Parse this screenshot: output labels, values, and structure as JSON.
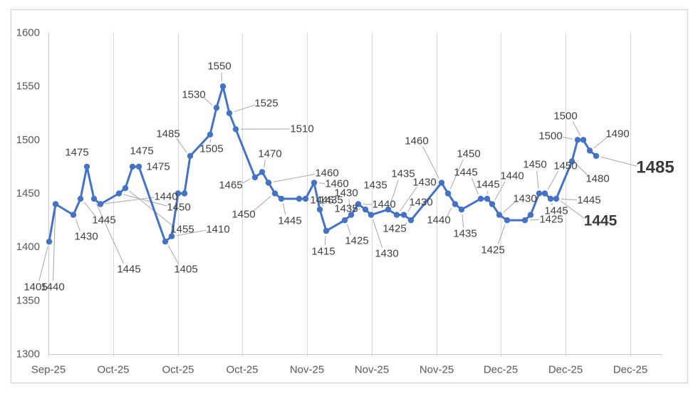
{
  "chart_data": {
    "type": "line",
    "title": "",
    "xlabel": "",
    "ylabel": "",
    "ylim": [
      1300,
      1600
    ],
    "y_ticks": [
      1300,
      1350,
      1400,
      1450,
      1500,
      1550,
      1600
    ],
    "x_tick_labels": [
      "Sep-25",
      "Oct-25",
      "Oct-25",
      "Oct-25",
      "Nov-25",
      "Nov-25",
      "Nov-25",
      "Dec-25",
      "Dec-25",
      "Dec-25"
    ],
    "grid": "vertical-only",
    "legend": "none",
    "colors": {
      "line": "#4472C4",
      "marker": "#4472C4",
      "data_label": "#404040",
      "axis_text": "#595959",
      "gridline": "#D9D9D9",
      "axis_line": "#C6C6C6",
      "leader_line": "#A6A6A6",
      "frame": "#D9D9D9",
      "background": "#FFFFFF"
    },
    "values": [
      1405,
      1440,
      1430,
      1445,
      1475,
      1445,
      1440,
      1450,
      1455,
      1475,
      1475,
      1405,
      1410,
      1450,
      1450,
      1485,
      1505,
      1530,
      1550,
      1525,
      1510,
      1465,
      1470,
      1460,
      1450,
      1445,
      1445,
      1445,
      1460,
      1435,
      1415,
      1425,
      1430,
      1440,
      1435,
      1430,
      1435,
      1430,
      1430,
      1425,
      1460,
      1450,
      1440,
      1435,
      1445,
      1445,
      1440,
      1430,
      1425,
      1425,
      1430,
      1450,
      1450,
      1445,
      1445,
      1480,
      1500,
      1500,
      1490,
      1485
    ],
    "points": [
      [
        69,
        1405
      ],
      [
        78,
        1440
      ],
      [
        103,
        1430
      ],
      [
        113,
        1445
      ],
      [
        122,
        1475
      ],
      [
        132,
        1445
      ],
      [
        141,
        1440
      ],
      [
        167,
        1450
      ],
      [
        176,
        1455
      ],
      [
        186,
        1475
      ],
      [
        195,
        1475
      ],
      [
        232,
        1405
      ],
      [
        241,
        1410
      ],
      [
        250,
        1450
      ],
      [
        259,
        1450
      ],
      [
        267,
        1485
      ],
      [
        295,
        1505
      ],
      [
        304,
        1530
      ],
      [
        313,
        1550
      ],
      [
        322,
        1525
      ],
      [
        331,
        1510
      ],
      [
        358,
        1465
      ],
      [
        368,
        1470
      ],
      [
        377,
        1460
      ],
      [
        386,
        1450
      ],
      [
        395,
        1445
      ],
      [
        420,
        1445
      ],
      [
        429,
        1445
      ],
      [
        441,
        1460
      ],
      [
        449,
        1435
      ],
      [
        458,
        1415
      ],
      [
        484,
        1425
      ],
      [
        493,
        1430
      ],
      [
        503,
        1440
      ],
      [
        513,
        1435
      ],
      [
        521,
        1430
      ],
      [
        545,
        1435
      ],
      [
        557,
        1430
      ],
      [
        567,
        1430
      ],
      [
        577,
        1425
      ],
      [
        620,
        1460
      ],
      [
        629,
        1450
      ],
      [
        639,
        1440
      ],
      [
        648,
        1435
      ],
      [
        675,
        1445
      ],
      [
        684,
        1445
      ],
      [
        691,
        1440
      ],
      [
        701,
        1430
      ],
      [
        712,
        1425
      ],
      [
        737,
        1425
      ],
      [
        745,
        1430
      ],
      [
        757,
        1450
      ],
      [
        765,
        1450
      ],
      [
        773,
        1445
      ],
      [
        781,
        1445
      ],
      [
        803,
        1480
      ],
      [
        811,
        1500
      ],
      [
        819,
        1500
      ],
      [
        828,
        1490
      ],
      [
        837,
        1485
      ]
    ],
    "labels": [
      [
        "1405",
        50,
        403,
        0,
        1,
        0
      ],
      [
        "1440",
        74,
        403,
        1,
        1,
        0
      ],
      [
        "1430",
        121,
        332,
        2,
        1,
        0
      ],
      [
        "1445",
        146,
        309,
        3,
        1,
        0
      ],
      [
        "1475",
        108,
        214,
        4,
        0,
        0
      ],
      [
        "1445",
        181,
        378,
        5,
        1,
        0
      ],
      [
        "1440",
        233,
        276,
        6,
        1,
        0
      ],
      [
        "1450",
        251,
        291,
        7,
        1,
        0
      ],
      [
        "1455",
        256,
        322,
        8,
        1,
        0
      ],
      [
        "1475",
        199,
        212,
        9,
        0,
        0
      ],
      [
        "1475",
        222,
        234,
        10,
        0,
        0
      ],
      [
        "1405",
        261,
        378,
        11,
        1,
        0
      ],
      [
        "1410",
        306,
        322,
        12,
        1,
        0
      ],
      [
        "1485",
        236,
        188,
        15,
        1,
        0
      ],
      [
        "1505",
        297,
        209,
        16,
        1,
        0
      ],
      [
        "1530",
        272,
        133,
        17,
        1,
        0
      ],
      [
        "1550",
        308,
        93,
        18,
        1,
        0
      ],
      [
        "1525",
        374,
        145,
        19,
        1,
        0
      ],
      [
        "1510",
        424,
        181,
        20,
        1,
        0
      ],
      [
        "1465",
        324,
        260,
        21,
        1,
        0
      ],
      [
        "1470",
        379,
        216,
        22,
        1,
        0
      ],
      [
        "1460",
        459,
        243,
        23,
        1,
        0
      ],
      [
        "1450",
        342,
        301,
        24,
        1,
        0
      ],
      [
        "1445",
        407,
        310,
        25,
        1,
        0
      ],
      [
        "1445",
        452,
        281,
        27,
        1,
        0
      ],
      [
        "1460",
        473,
        258,
        28,
        1,
        0
      ],
      [
        "1435",
        465,
        281,
        29,
        1,
        0
      ],
      [
        "1415",
        454,
        353,
        30,
        1,
        0
      ],
      [
        "1425",
        501,
        338,
        31,
        1,
        0
      ],
      [
        "1430",
        486,
        271,
        32,
        1,
        0
      ],
      [
        "1440",
        539,
        287,
        33,
        1,
        0
      ],
      [
        "1435",
        486,
        293,
        34,
        1,
        0
      ],
      [
        "1435",
        527,
        260,
        34,
        0,
        0
      ],
      [
        "1430",
        543,
        356,
        35,
        1,
        0
      ],
      [
        "1435",
        566,
        244,
        36,
        1,
        0
      ],
      [
        "1430",
        596,
        256,
        37,
        1,
        0
      ],
      [
        "1430",
        591,
        284,
        38,
        1,
        0
      ],
      [
        "1425",
        554,
        321,
        39,
        1,
        0
      ],
      [
        "1460",
        585,
        198,
        40,
        1,
        0
      ],
      [
        "1450",
        658,
        216,
        41,
        1,
        0
      ],
      [
        "1440",
        616,
        309,
        42,
        1,
        0
      ],
      [
        "1435",
        653,
        328,
        43,
        1,
        0
      ],
      [
        "1445",
        654,
        242,
        44,
        1,
        0
      ],
      [
        "1445",
        685,
        259,
        45,
        1,
        0
      ],
      [
        "1440",
        719,
        247,
        46,
        1,
        0
      ],
      [
        "1430",
        737,
        279,
        47,
        1,
        0
      ],
      [
        "1425",
        692,
        351,
        48,
        1,
        0
      ],
      [
        "1425",
        774,
        308,
        49,
        1,
        0
      ],
      [
        "1450",
        751,
        231,
        51,
        1,
        0
      ],
      [
        "1450",
        794,
        233,
        52,
        1,
        0
      ],
      [
        "1445",
        781,
        296,
        53,
        1,
        0
      ],
      [
        "1445",
        827,
        281,
        54,
        1,
        0
      ],
      [
        "1445",
        843,
        310,
        54,
        1,
        1
      ],
      [
        "1480",
        839,
        251,
        55,
        1,
        0
      ],
      [
        "1500",
        773,
        191,
        56,
        1,
        0
      ],
      [
        "1500",
        794,
        163,
        57,
        1,
        0
      ],
      [
        "1490",
        867,
        188,
        58,
        1,
        0
      ],
      [
        "1485",
        920,
        235,
        59,
        1,
        1
      ]
    ],
    "final_value_callouts": [
      "1445",
      "1485"
    ]
  }
}
